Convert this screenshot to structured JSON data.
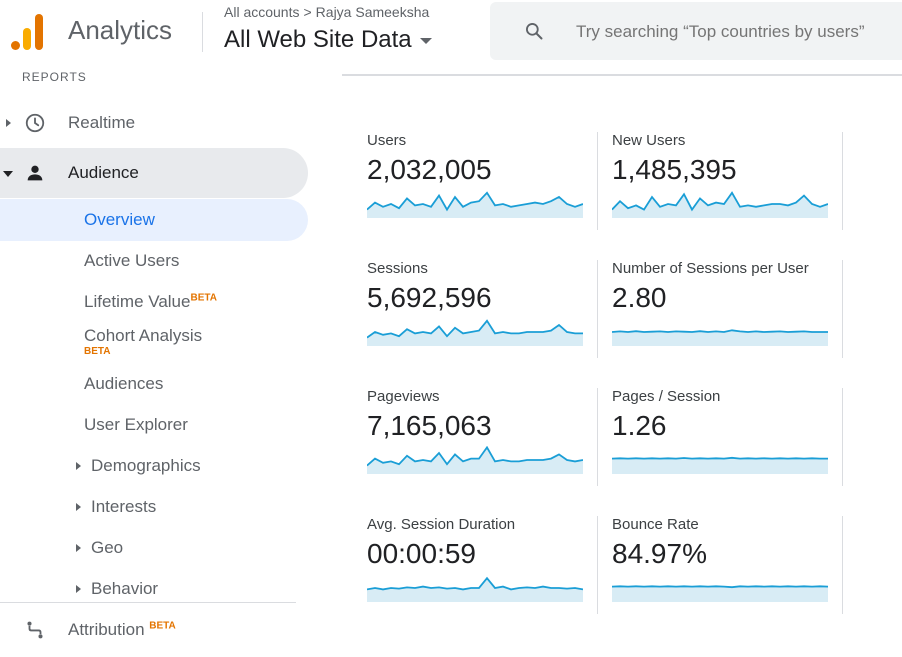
{
  "header": {
    "app_name": "Analytics",
    "breadcrumb_root": "All accounts",
    "breadcrumb_sep": ">",
    "breadcrumb_account": "Rajya Sameeksha",
    "property": "All Web Site Data",
    "search_placeholder": "Try searching “Top countries by users”"
  },
  "sidebar": {
    "section_label": "REPORTS",
    "realtime": "Realtime",
    "audience": "Audience",
    "items": {
      "overview": "Overview",
      "active_users": "Active Users",
      "lifetime_value": "Lifetime Value",
      "lifetime_value_badge": "BETA",
      "cohort_analysis": "Cohort Analysis",
      "cohort_analysis_badge": "BETA",
      "audiences": "Audiences",
      "user_explorer": "User Explorer",
      "demographics": "Demographics",
      "interests": "Interests",
      "geo": "Geo",
      "behavior": "Behavior"
    },
    "attribution": "Attribution",
    "attribution_badge": "BETA"
  },
  "metrics": [
    {
      "label": "Users",
      "value": "2,032,005",
      "trend": [
        0.3,
        0.55,
        0.4,
        0.5,
        0.35,
        0.7,
        0.45,
        0.5,
        0.4,
        0.8,
        0.3,
        0.75,
        0.4,
        0.55,
        0.6,
        0.9,
        0.45,
        0.5,
        0.4,
        0.45,
        0.5,
        0.55,
        0.5,
        0.6,
        0.75,
        0.5,
        0.4,
        0.5
      ]
    },
    {
      "label": "New Users",
      "value": "1,485,395",
      "trend": [
        0.3,
        0.6,
        0.35,
        0.45,
        0.3,
        0.75,
        0.4,
        0.5,
        0.45,
        0.85,
        0.3,
        0.7,
        0.45,
        0.55,
        0.5,
        0.9,
        0.4,
        0.45,
        0.4,
        0.45,
        0.5,
        0.5,
        0.45,
        0.55,
        0.8,
        0.5,
        0.4,
        0.5
      ]
    },
    {
      "label": "Sessions",
      "value": "5,692,596",
      "trend": [
        0.3,
        0.5,
        0.4,
        0.45,
        0.35,
        0.6,
        0.45,
        0.5,
        0.45,
        0.7,
        0.35,
        0.65,
        0.45,
        0.5,
        0.55,
        0.9,
        0.45,
        0.5,
        0.45,
        0.45,
        0.5,
        0.5,
        0.5,
        0.55,
        0.75,
        0.5,
        0.45,
        0.45
      ]
    },
    {
      "label": "Number of Sessions per User",
      "value": "2.80",
      "trend": [
        0.5,
        0.52,
        0.5,
        0.53,
        0.5,
        0.51,
        0.52,
        0.5,
        0.52,
        0.51,
        0.5,
        0.53,
        0.5,
        0.52,
        0.5,
        0.56,
        0.52,
        0.5,
        0.52,
        0.5,
        0.51,
        0.52,
        0.5,
        0.51,
        0.52,
        0.5,
        0.5,
        0.5
      ]
    },
    {
      "label": "Pageviews",
      "value": "7,165,063",
      "trend": [
        0.3,
        0.55,
        0.4,
        0.45,
        0.35,
        0.65,
        0.45,
        0.5,
        0.45,
        0.75,
        0.35,
        0.7,
        0.45,
        0.55,
        0.55,
        0.95,
        0.45,
        0.5,
        0.45,
        0.45,
        0.5,
        0.5,
        0.5,
        0.55,
        0.7,
        0.5,
        0.45,
        0.5
      ]
    },
    {
      "label": "Pages / Session",
      "value": "1.26",
      "trend": [
        0.55,
        0.56,
        0.55,
        0.56,
        0.55,
        0.56,
        0.55,
        0.56,
        0.55,
        0.57,
        0.55,
        0.56,
        0.55,
        0.56,
        0.55,
        0.58,
        0.55,
        0.56,
        0.55,
        0.56,
        0.55,
        0.56,
        0.55,
        0.56,
        0.55,
        0.56,
        0.55,
        0.55
      ]
    },
    {
      "label": "Avg. Session Duration",
      "value": "00:00:59",
      "trend": [
        0.45,
        0.5,
        0.45,
        0.5,
        0.48,
        0.52,
        0.5,
        0.55,
        0.5,
        0.52,
        0.48,
        0.5,
        0.45,
        0.5,
        0.5,
        0.85,
        0.5,
        0.55,
        0.45,
        0.5,
        0.52,
        0.5,
        0.55,
        0.5,
        0.5,
        0.48,
        0.5,
        0.45
      ]
    },
    {
      "label": "Bounce Rate",
      "value": "84.97%",
      "trend": [
        0.55,
        0.56,
        0.55,
        0.56,
        0.55,
        0.56,
        0.55,
        0.56,
        0.55,
        0.56,
        0.55,
        0.56,
        0.55,
        0.56,
        0.55,
        0.53,
        0.56,
        0.55,
        0.56,
        0.55,
        0.56,
        0.55,
        0.56,
        0.55,
        0.56,
        0.55,
        0.56,
        0.55
      ]
    }
  ],
  "colors": {
    "sparkline": "#1a9ed6",
    "sparkline_fill": "#d8ecf5",
    "accent": "#1a73e8",
    "beta": "#e37400"
  }
}
